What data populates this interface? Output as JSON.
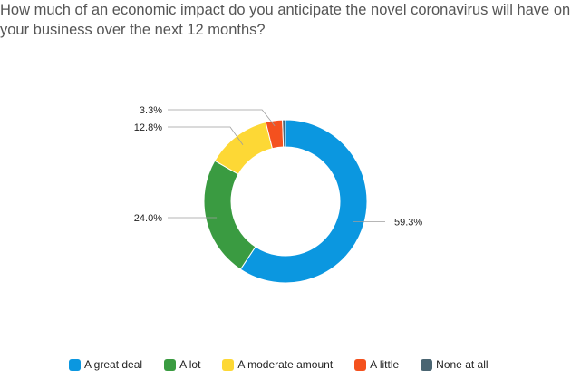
{
  "title": {
    "line1": "How much of an economic impact do you anticipate the novel coronavirus will have on",
    "line2": "your business over the next 12 months?"
  },
  "chart_data": {
    "type": "pie",
    "donut": true,
    "title": "How much of an economic impact do you anticipate the novel coronavirus will have on your business over the next 12 months?",
    "categories": [
      "A great deal",
      "A lot",
      "A moderate amount",
      "A little",
      "None at all"
    ],
    "values": [
      59.3,
      24.0,
      12.8,
      3.3,
      0.6
    ],
    "data_labels": [
      "59.3%",
      "24.0%",
      "12.8%",
      "3.3%",
      ""
    ],
    "colors": [
      "#0b97e0",
      "#3a9b41",
      "#fdd835",
      "#f4511e",
      "#4a6572"
    ],
    "legend_position": "bottom"
  },
  "legend": {
    "items": [
      {
        "label": "A great deal",
        "color": "#0b97e0"
      },
      {
        "label": "A lot",
        "color": "#3a9b41"
      },
      {
        "label": "A moderate amount",
        "color": "#fdd835"
      },
      {
        "label": "A little",
        "color": "#f4511e"
      },
      {
        "label": "None at all",
        "color": "#4a6572"
      }
    ]
  }
}
